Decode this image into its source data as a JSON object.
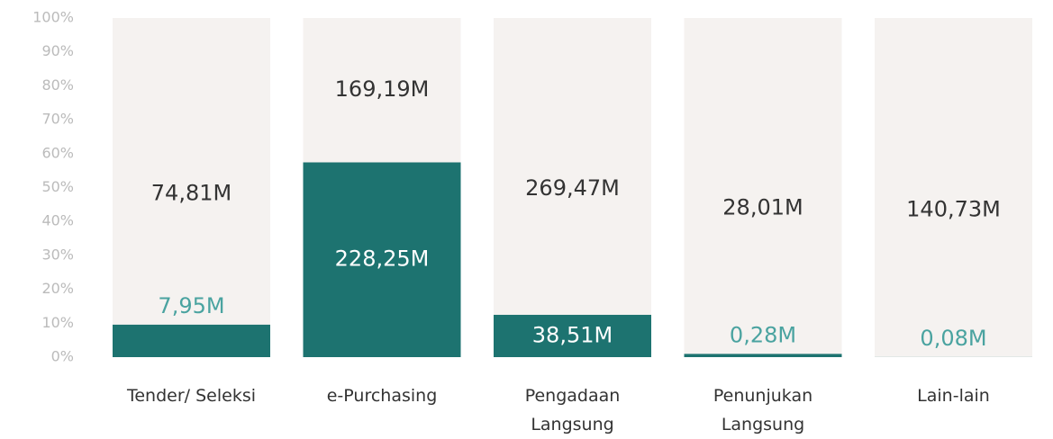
{
  "chart_data": {
    "type": "bar",
    "stacking": "percent",
    "categories": [
      "Tender/ Seleksi",
      "e-Purchasing",
      "Pengadaan\nLangsung",
      "Penunjukan\nLangsung",
      "Lain-lain"
    ],
    "series": [
      {
        "color": "#1d7370",
        "values": [
          7.95,
          228.25,
          38.51,
          0.28,
          0.08
        ],
        "value_labels": [
          "7,95M",
          "228,25M",
          "38,51M",
          "0,28M",
          "0,08M"
        ]
      },
      {
        "color": "#f5f2f0",
        "values": [
          74.81,
          169.19,
          269.47,
          28.01,
          140.73
        ],
        "value_labels": [
          "74,81M",
          "169,19M",
          "269,47M",
          "28,01M",
          "140,73M"
        ]
      }
    ],
    "ylim": [
      0,
      100
    ],
    "yticks": [
      {
        "value": 0,
        "label": "0%"
      },
      {
        "value": 10,
        "label": "10%"
      },
      {
        "value": 20,
        "label": "20%"
      },
      {
        "value": 30,
        "label": "30%"
      },
      {
        "value": 40,
        "label": "40%"
      },
      {
        "value": 50,
        "label": "50%"
      },
      {
        "value": 60,
        "label": "60%"
      },
      {
        "value": 70,
        "label": "70%"
      },
      {
        "value": 80,
        "label": "80%"
      },
      {
        "value": 90,
        "label": "90%"
      },
      {
        "value": 100,
        "label": "100%"
      }
    ],
    "grid": false
  }
}
